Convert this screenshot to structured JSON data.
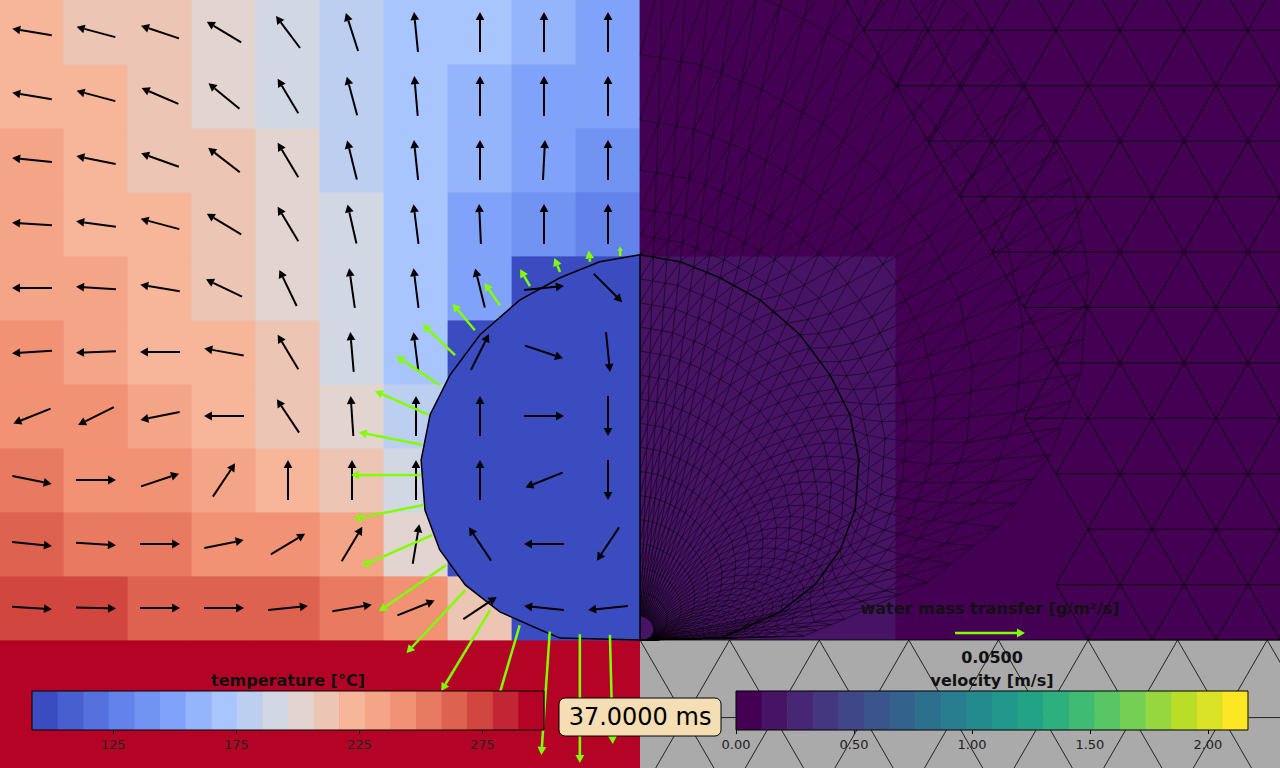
{
  "chart_data": {
    "type": "field",
    "xlim": [
      -1,
      1
    ],
    "ylim": [
      -0.2,
      1.0
    ],
    "tick_labels": false,
    "time_label": "37.0000 ms",
    "temperature_field": {
      "x_edges": [
        -1,
        -0.9,
        -0.8,
        -0.7,
        -0.6,
        -0.5,
        -0.4,
        -0.3,
        -0.2,
        -0.1,
        0
      ],
      "y_edges": [
        -0.2,
        0,
        0.1,
        0.2,
        0.3,
        0.4,
        0.5,
        0.6,
        0.7,
        0.8,
        0.9,
        1.0
      ],
      "values": [
        [
          300,
          300,
          300,
          300,
          300,
          300,
          300,
          300,
          300,
          300
        ],
        [
          275,
          272,
          268,
          265,
          262,
          258,
          245,
          215,
          100,
          100
        ],
        [
          262,
          258,
          252,
          245,
          238,
          228,
          200,
          100,
          100,
          100
        ],
        [
          252,
          247,
          240,
          232,
          222,
          210,
          195,
          100,
          100,
          100
        ],
        [
          245,
          240,
          233,
          225,
          215,
          200,
          185,
          100,
          100,
          100
        ],
        [
          240,
          234,
          226,
          218,
          207,
          190,
          170,
          100,
          100,
          100
        ],
        [
          236,
          230,
          222,
          213,
          203,
          188,
          168,
          145,
          100,
          100
        ],
        [
          232,
          226,
          218,
          210,
          200,
          187,
          170,
          152,
          135,
          125
        ],
        [
          228,
          222,
          215,
          207,
          197,
          185,
          170,
          157,
          145,
          135
        ],
        [
          225,
          220,
          212,
          205,
          195,
          185,
          172,
          162,
          152,
          145
        ],
        [
          220,
          215,
          210,
          200,
          190,
          180,
          170,
          165,
          158,
          150
        ]
      ]
    },
    "temperature_colorbar": {
      "label": "temperature [°C]",
      "range": [
        92,
        300
      ],
      "ticks": [
        125,
        175,
        225,
        275
      ],
      "levels": 20
    },
    "velocity_arrows": {
      "x": [
        -0.95,
        -0.85,
        -0.75,
        -0.65,
        -0.55,
        -0.45,
        -0.35,
        -0.25,
        -0.15,
        -0.05
      ],
      "y": [
        0.05,
        0.15,
        0.25,
        0.35,
        0.45,
        0.55,
        0.65,
        0.75,
        0.85,
        0.95
      ],
      "u": [
        [
          0.35,
          0.35,
          0.35,
          0.35,
          0.3,
          0.3,
          0.25,
          0.15,
          -0.2,
          -0.2
        ],
        [
          0.3,
          0.3,
          0.3,
          0.25,
          0.2,
          0.12,
          0.05,
          -0.1,
          -0.2,
          -0.1
        ],
        [
          0.25,
          0.2,
          0.15,
          0.1,
          0,
          0,
          0,
          0,
          -0.05,
          0
        ],
        [
          -0.25,
          -0.2,
          -0.25,
          -0.25,
          -0.1,
          -0.02,
          0,
          0,
          0.15,
          0
        ],
        [
          -0.3,
          -0.3,
          -0.3,
          -0.28,
          -0.12,
          -0.03,
          -0.05,
          0.1,
          0.15,
          0.02
        ],
        [
          -0.3,
          -0.3,
          -0.3,
          -0.25,
          -0.12,
          -0.05,
          -0.05,
          -0.1,
          0.2,
          0.1
        ],
        [
          -0.3,
          -0.3,
          -0.3,
          -0.25,
          -0.15,
          -0.08,
          -0.05,
          -0.02,
          0,
          0
        ],
        [
          -0.3,
          -0.3,
          -0.28,
          -0.22,
          -0.15,
          -0.08,
          -0.04,
          0,
          0.02,
          0
        ],
        [
          -0.3,
          -0.3,
          -0.28,
          -0.22,
          -0.15,
          -0.08,
          -0.03,
          0,
          0,
          0
        ],
        [
          -0.3,
          -0.3,
          -0.3,
          -0.25,
          -0.15,
          -0.08,
          -0.03,
          0,
          0,
          0
        ]
      ],
      "v": [
        [
          -0.02,
          -0.01,
          0,
          0,
          0.03,
          0.05,
          0.1,
          0.1,
          0.02,
          -0.02
        ],
        [
          -0.03,
          -0.02,
          0,
          0.05,
          0.12,
          0.2,
          0.3,
          0.15,
          0,
          -0.15
        ],
        [
          -0.05,
          0,
          0.05,
          0.15,
          0.25,
          0.3,
          0.35,
          0.2,
          -0.02,
          -0.2
        ],
        [
          -0.1,
          -0.1,
          -0.05,
          0,
          0.15,
          0.3,
          0.35,
          0.2,
          0,
          -0.2
        ],
        [
          -0.02,
          -0.01,
          0,
          0.05,
          0.2,
          0.35,
          0.4,
          0.2,
          -0.05,
          -0.2
        ],
        [
          0,
          0.02,
          0.05,
          0.12,
          0.25,
          0.35,
          0.4,
          0.4,
          0.02,
          -0.1
        ],
        [
          0.02,
          0.04,
          0.08,
          0.15,
          0.25,
          0.35,
          0.4,
          0.45,
          0.5,
          0.5
        ],
        [
          0.03,
          0.06,
          0.1,
          0.17,
          0.25,
          0.32,
          0.38,
          0.4,
          0.4,
          0.4
        ],
        [
          0.05,
          0.08,
          0.12,
          0.18,
          0.25,
          0.3,
          0.35,
          0.35,
          0.35,
          0.35
        ],
        [
          0.05,
          0.08,
          0.1,
          0.15,
          0.2,
          0.25,
          0.3,
          0.3,
          0.3,
          0.3
        ]
      ]
    },
    "velocity_field": {
      "x_edges": [
        0,
        0.2,
        0.4,
        0.6,
        0.8,
        1.0
      ],
      "y_edges": [
        0,
        0.2,
        0.4,
        0.6,
        0.8,
        1.0
      ],
      "values": [
        [
          0.15,
          0.12,
          0.08,
          0.04,
          0.03
        ],
        [
          0.12,
          0.15,
          0.09,
          0.04,
          0.03
        ],
        [
          0.15,
          0.12,
          0.08,
          0.04,
          0.03
        ],
        [
          0.1,
          0.08,
          0.06,
          0.03,
          0.02
        ],
        [
          0.06,
          0.05,
          0.04,
          0.03,
          0.02
        ]
      ]
    },
    "velocity_colorbar": {
      "label": "velocity [m/s]",
      "range": [
        0,
        2.17
      ],
      "ticks": [
        {
          "value": 0,
          "label": "0.00"
        },
        {
          "value": 0.5,
          "label": "0.50"
        },
        {
          "value": 1,
          "label": "1.00"
        },
        {
          "value": 1.5,
          "label": "1.50"
        },
        {
          "value": 2,
          "label": "2.00"
        }
      ],
      "levels": 20
    },
    "droplet": {
      "temperature": 95,
      "outline": [
        [
          0,
          0.602
        ],
        [
          -0.063,
          0.591
        ],
        [
          -0.125,
          0.566
        ],
        [
          -0.188,
          0.531
        ],
        [
          -0.25,
          0.477
        ],
        [
          -0.297,
          0.414
        ],
        [
          -0.328,
          0.352
        ],
        [
          -0.342,
          0.281
        ],
        [
          -0.336,
          0.203
        ],
        [
          -0.313,
          0.141
        ],
        [
          -0.273,
          0.086
        ],
        [
          -0.219,
          0.044
        ],
        [
          -0.156,
          0.016
        ],
        [
          -0.125,
          0.003
        ],
        [
          0,
          0
        ]
      ]
    },
    "mass_transfer": {
      "label": "water mass transfer [g/m²/s]",
      "color": "#7fff00",
      "reference": {
        "value": 0.05,
        "label": "0.0500"
      },
      "arrows": [
        [
          -0.031,
          0.6,
          0,
          0.007
        ],
        [
          -0.078,
          0.591,
          -0.001,
          0.008
        ],
        [
          -0.125,
          0.575,
          -0.004,
          0.01
        ],
        [
          -0.172,
          0.553,
          -0.007,
          0.012
        ],
        [
          -0.219,
          0.523,
          -0.011,
          0.016
        ],
        [
          -0.258,
          0.484,
          -0.016,
          0.019
        ],
        [
          -0.289,
          0.445,
          -0.023,
          0.022
        ],
        [
          -0.313,
          0.398,
          -0.031,
          0.021
        ],
        [
          -0.331,
          0.352,
          -0.038,
          0.017
        ],
        [
          -0.341,
          0.305,
          -0.045,
          0.009
        ],
        [
          -0.342,
          0.258,
          -0.05,
          0
        ],
        [
          -0.338,
          0.211,
          -0.05,
          -0.01
        ],
        [
          -0.325,
          0.164,
          -0.05,
          -0.022
        ],
        [
          -0.303,
          0.117,
          -0.048,
          -0.033
        ],
        [
          -0.273,
          0.078,
          -0.042,
          -0.045
        ],
        [
          -0.234,
          0.047,
          -0.035,
          -0.058
        ],
        [
          -0.188,
          0.023,
          -0.022,
          -0.075
        ],
        [
          -0.141,
          0.013,
          -0.006,
          -0.088
        ],
        [
          -0.094,
          0.009,
          0,
          -0.092
        ],
        [
          -0.047,
          0.008,
          0.002,
          -0.078
        ]
      ]
    }
  }
}
